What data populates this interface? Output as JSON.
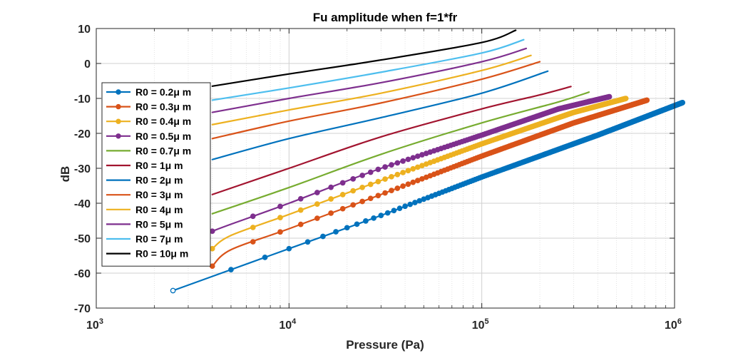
{
  "chart_data": {
    "type": "line",
    "title": "Fu amplitude when f=1*fr",
    "xlabel": "Pressure (Pa)",
    "ylabel": "dB",
    "xscale": "log",
    "xlim": [
      1000,
      1000000
    ],
    "ylim": [
      -70,
      10
    ],
    "x_ticks": [
      {
        "base": "10",
        "exp": "3"
      },
      {
        "base": "10",
        "exp": "4"
      },
      {
        "base": "10",
        "exp": "5"
      },
      {
        "base": "10",
        "exp": "6"
      }
    ],
    "y_ticks": [
      "10",
      "0",
      "-10",
      "-20",
      "-30",
      "-40",
      "-50",
      "-60",
      "-70"
    ],
    "y_tick_values": [
      10,
      0,
      -10,
      -20,
      -30,
      -40,
      -50,
      -60,
      -70
    ],
    "grid": true,
    "legend_position": "left",
    "series": [
      {
        "name": "R0 = 0.2μ m",
        "color": "#0072BD",
        "markers": true,
        "points": [
          [
            2500,
            -65
          ],
          [
            5000,
            -59
          ],
          [
            10000,
            -53
          ],
          [
            30000,
            -43.5
          ],
          [
            100000,
            -32.5
          ],
          [
            400000,
            -20.5
          ],
          [
            1100000,
            -11.2
          ]
        ]
      },
      {
        "name": "R0 = 0.3μ m",
        "color": "#D95319",
        "markers": true,
        "points": [
          [
            4000,
            -58
          ],
          [
            5000,
            -53.3
          ],
          [
            10000,
            -47.3
          ],
          [
            30000,
            -37.5
          ],
          [
            100000,
            -26.5
          ],
          [
            300000,
            -17
          ],
          [
            720000,
            -10.5
          ]
        ]
      },
      {
        "name": "R0 = 0.4μ m",
        "color": "#EDB120",
        "markers": true,
        "points": [
          [
            4000,
            -53
          ],
          [
            5000,
            -49.2
          ],
          [
            10000,
            -43.2
          ],
          [
            30000,
            -33.5
          ],
          [
            100000,
            -23
          ],
          [
            300000,
            -14
          ],
          [
            560000,
            -10
          ]
        ]
      },
      {
        "name": "R0 = 0.5μ m",
        "color": "#7E2F8E",
        "markers": true,
        "points": [
          [
            4000,
            -48
          ],
          [
            5000,
            -46
          ],
          [
            10000,
            -40
          ],
          [
            30000,
            -30
          ],
          [
            100000,
            -20.5
          ],
          [
            250000,
            -13
          ],
          [
            460000,
            -9.5
          ]
        ]
      },
      {
        "name": "R0 = 0.7μ m",
        "color": "#77AC30",
        "markers": false,
        "points": [
          [
            4000,
            -43
          ],
          [
            10000,
            -35.5
          ],
          [
            30000,
            -26
          ],
          [
            100000,
            -17
          ],
          [
            250000,
            -11
          ],
          [
            360000,
            -8.2
          ]
        ]
      },
      {
        "name": "R0 = 1μ m",
        "color": "#A2142F",
        "markers": false,
        "points": [
          [
            4000,
            -37.5
          ],
          [
            10000,
            -30
          ],
          [
            30000,
            -21
          ],
          [
            100000,
            -13
          ],
          [
            200000,
            -9
          ],
          [
            290000,
            -6.6
          ]
        ]
      },
      {
        "name": "R0 = 2μ m",
        "color": "#0072BD",
        "markers": false,
        "points": [
          [
            4000,
            -27.5
          ],
          [
            10000,
            -21.5
          ],
          [
            30000,
            -15.5
          ],
          [
            100000,
            -8.5
          ],
          [
            220000,
            -2.2
          ]
        ]
      },
      {
        "name": "R0 = 3μ m",
        "color": "#D95319",
        "markers": false,
        "points": [
          [
            4000,
            -21.5
          ],
          [
            10000,
            -16.5
          ],
          [
            30000,
            -11.3
          ],
          [
            100000,
            -4.5
          ],
          [
            200000,
            0.5
          ]
        ]
      },
      {
        "name": "R0 = 4μ m",
        "color": "#EDB120",
        "markers": false,
        "points": [
          [
            4000,
            -17.5
          ],
          [
            10000,
            -13.3
          ],
          [
            30000,
            -8.5
          ],
          [
            100000,
            -2
          ],
          [
            180000,
            2.3
          ]
        ]
      },
      {
        "name": "R0 = 5μ m",
        "color": "#7E2F8E",
        "markers": false,
        "points": [
          [
            4000,
            -14
          ],
          [
            10000,
            -10
          ],
          [
            30000,
            -5.5
          ],
          [
            100000,
            0.5
          ],
          [
            170000,
            4.3
          ]
        ]
      },
      {
        "name": "R0 = 7μ m",
        "color": "#4DBEEE",
        "markers": false,
        "points": [
          [
            4000,
            -10.5
          ],
          [
            10000,
            -7
          ],
          [
            30000,
            -2.5
          ],
          [
            100000,
            3
          ],
          [
            165000,
            6.8
          ]
        ]
      },
      {
        "name": "R0 = 10μ m",
        "color": "#000000",
        "markers": false,
        "points": [
          [
            4000,
            -6.5
          ],
          [
            10000,
            -3
          ],
          [
            30000,
            1
          ],
          [
            100000,
            6
          ],
          [
            150000,
            9.5
          ]
        ]
      }
    ]
  }
}
